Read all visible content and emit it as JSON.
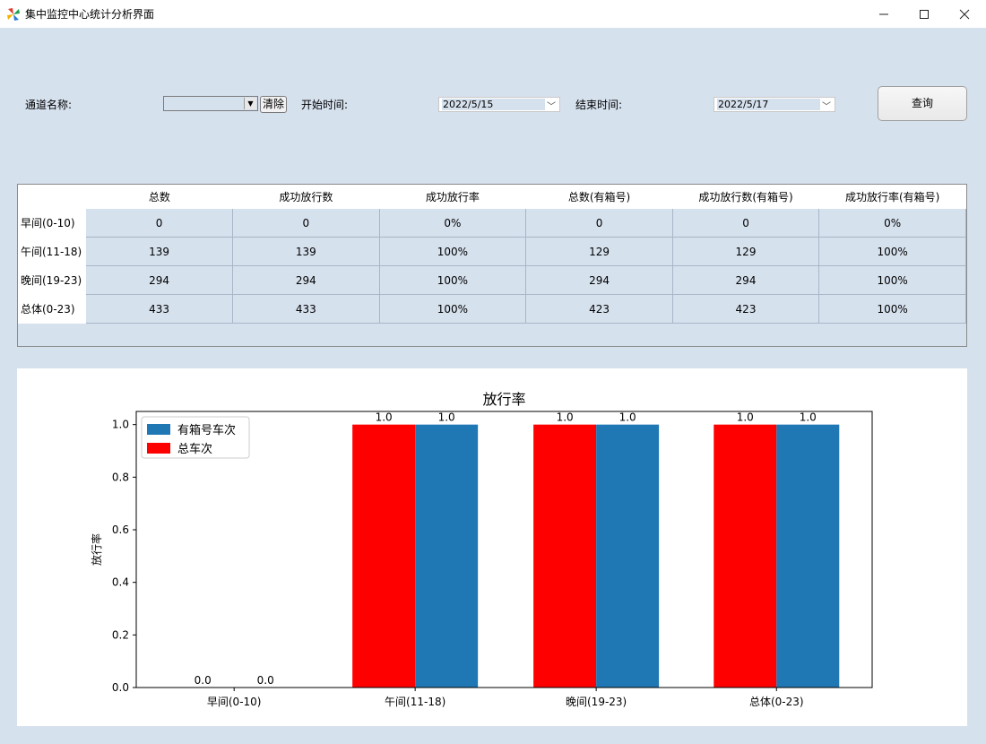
{
  "window": {
    "title": "集中监控中心统计分析界面",
    "minimize_icon": "minimize-icon",
    "maximize_icon": "maximize-icon",
    "close_icon": "close-icon"
  },
  "filters": {
    "channel_label": "通道名称:",
    "channel_value": "",
    "clear_label": "清除",
    "start_label": "开始时间:",
    "start_value": "2022/5/15",
    "end_label": "结束时间:",
    "end_value": "2022/5/17",
    "query_label": "查询"
  },
  "table": {
    "columns": [
      "",
      "总数",
      "成功放行数",
      "成功放行率",
      "总数(有箱号)",
      "成功放行数(有箱号)",
      "成功放行率(有箱号)"
    ],
    "rows": [
      {
        "label": "早间(0-10)",
        "cells": [
          "0",
          "0",
          "0%",
          "0",
          "0",
          "0%"
        ]
      },
      {
        "label": "午间(11-18)",
        "cells": [
          "139",
          "139",
          "100%",
          "129",
          "129",
          "100%"
        ]
      },
      {
        "label": "晚间(19-23)",
        "cells": [
          "294",
          "294",
          "100%",
          "294",
          "294",
          "100%"
        ]
      },
      {
        "label": "总体(0-23)",
        "cells": [
          "433",
          "433",
          "100%",
          "423",
          "423",
          "100%"
        ]
      }
    ]
  },
  "colors": {
    "series_total": "#ff0000",
    "series_box": "#1f77b4",
    "background": "#d6e1ee"
  },
  "chart_data": {
    "type": "bar",
    "title": "放行率",
    "xlabel": "",
    "ylabel": "放行率",
    "categories": [
      "早间(0-10)",
      "午间(11-18)",
      "晚间(19-23)",
      "总体(0-23)"
    ],
    "ylim": [
      0,
      1.05
    ],
    "yticks": [
      "0.0",
      "0.2",
      "0.4",
      "0.6",
      "0.8",
      "1.0"
    ],
    "legend_position": "top-left",
    "series": [
      {
        "name": "总车次",
        "color": "#ff0000",
        "values": [
          0.0,
          1.0,
          1.0,
          1.0
        ],
        "labels": [
          "0.0",
          "1.0",
          "1.0",
          "1.0"
        ]
      },
      {
        "name": "有箱号车次",
        "color": "#1f77b4",
        "values": [
          0.0,
          1.0,
          1.0,
          1.0
        ],
        "labels": [
          "0.0",
          "1.0",
          "1.0",
          "1.0"
        ]
      }
    ],
    "legend_order": [
      "有箱号车次",
      "总车次"
    ]
  }
}
